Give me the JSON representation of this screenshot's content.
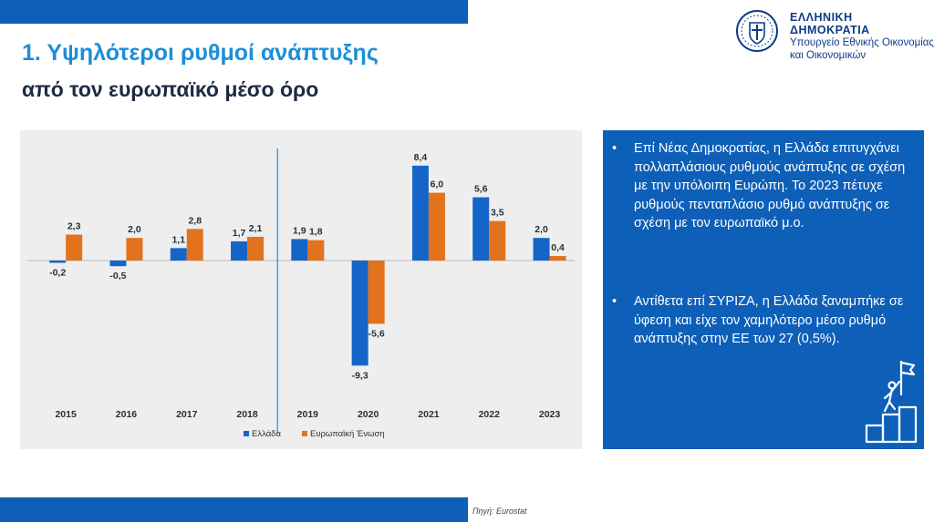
{
  "title_line1": "1. Υψηλότεροι ρυθμοί ανάπτυξης",
  "title_line2": "από τον ευρωπαϊκό μέσο όρο",
  "ministry": {
    "line1": "ΕΛΛΗΝΙΚΗ ΔΗΜΟΚΡΑΤΙΑ",
    "line2": "Υπουργείο Εθνικής Οικονομίας",
    "line3": "και Οικονομικών"
  },
  "colors": {
    "brand_blue": "#0d5fb8",
    "title_blue": "#1a8fd8",
    "title_dark": "#1a2a44",
    "greece": "#1565c8",
    "eu": "#e2731c",
    "divider": "#1a8fd8",
    "panel_bg": "#eeeeee"
  },
  "icons": [
    "coat-of-arms-icon",
    "climber-flag-icon"
  ],
  "chart_data": {
    "type": "bar",
    "categories": [
      "2015",
      "2016",
      "2017",
      "2018",
      "2019",
      "2020",
      "2021",
      "2022",
      "2023"
    ],
    "series": [
      {
        "name": "Ελλάδα",
        "values": [
          -0.2,
          -0.5,
          1.1,
          1.7,
          1.9,
          -9.3,
          8.4,
          5.6,
          2.0
        ],
        "labels": [
          "-0,2",
          "-0,5",
          "1,1",
          "1,7",
          "1,9",
          "-9,3",
          "8,4",
          "5,6",
          "2,0"
        ]
      },
      {
        "name": "Ευρωπαϊκή Ένωση",
        "values": [
          2.3,
          2.0,
          2.8,
          2.1,
          1.8,
          -5.6,
          6.0,
          3.5,
          0.4
        ],
        "labels": [
          "2,3",
          "2,0",
          "2,8",
          "2,1",
          "1,8",
          "-5,6",
          "6,0",
          "3,5",
          "0,4"
        ]
      }
    ],
    "divider_after": "2018",
    "legend_position": "bottom-left",
    "grid": false
  },
  "bullets": [
    "Επί Νέας Δημοκρατίας, η Ελλάδα επιτυγχάνει πολλαπλάσιους ρυθμούς ανάπτυξης σε σχέση με την υπόλοιπη Ευρώπη. Το 2023 πέτυχε ρυθμούς πενταπλάσιο ρυθμό ανάπτυξης σε σχέση με τον ευρωπαϊκό μ.ο.",
    "Αντίθετα επί ΣΥΡΙΖΑ, η Ελλάδα ξαναμπήκε σε ύφεση και είχε τον χαμηλότερο μέσο ρυθμό ανάπτυξης στην ΕΕ των 27 (0,5%)."
  ],
  "bullet_symbol": "•",
  "source": "Πηγή: Eurostat"
}
